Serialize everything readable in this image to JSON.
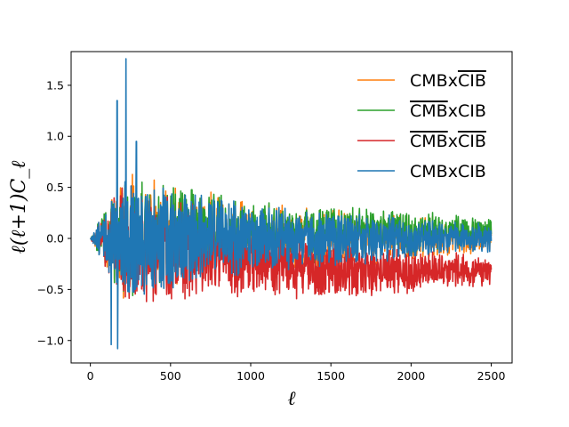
{
  "chart_data": {
    "type": "line",
    "xlabel": "ℓ",
    "ylabel": "ℓ(ℓ+1)C_ℓ",
    "xlim": [
      -120,
      2630
    ],
    "ylim": [
      -1.22,
      1.83
    ],
    "xticks": [
      0,
      500,
      1000,
      1500,
      2000,
      2500
    ],
    "yticks": [
      -1.0,
      -0.5,
      0.0,
      0.5,
      1.0,
      1.5
    ],
    "xtick_labels": [
      "0",
      "500",
      "1000",
      "1500",
      "2000",
      "2500"
    ],
    "ytick_labels": [
      "−1.0",
      "−0.5",
      "0.0",
      "0.5",
      "1.0",
      "1.5"
    ],
    "grid": false,
    "legend_position": "top-right",
    "n_points": 2500,
    "series": [
      {
        "name": "CMBxCIB_overline",
        "legend": [
          "CMBx",
          "CIB"
        ],
        "overline_part": [
          false,
          true
        ],
        "color": "#ff7f0e",
        "envelope": [
          {
            "x": 0,
            "amp": 0.0
          },
          {
            "x": 200,
            "amp": 0.6
          },
          {
            "x": 1000,
            "amp": 0.35
          },
          {
            "x": 2500,
            "amp": 0.15
          }
        ],
        "offset": 0.0
      },
      {
        "name": "overlineCMBxCIB",
        "legend": [
          "CMB",
          "xCIB"
        ],
        "overline_part": [
          true,
          false
        ],
        "color": "#2ca02c",
        "envelope": [
          {
            "x": 0,
            "amp": 0.0
          },
          {
            "x": 200,
            "amp": 0.6
          },
          {
            "x": 1000,
            "amp": 0.33
          },
          {
            "x": 2500,
            "amp": 0.14
          }
        ],
        "offset_start": 0.0,
        "offset_end": 0.06
      },
      {
        "name": "overlineCMBxoverlineCIB",
        "legend": [
          "CMB",
          "x",
          "CIB"
        ],
        "overline_part": [
          true,
          false,
          true
        ],
        "color": "#d62728",
        "envelope": [
          {
            "x": 0,
            "amp": 0.0
          },
          {
            "x": 200,
            "amp": 0.6
          },
          {
            "x": 1000,
            "amp": 0.33
          },
          {
            "x": 2500,
            "amp": 0.14
          }
        ],
        "offset_start": 0.0,
        "offset_end": -0.32
      },
      {
        "name": "CMBxCIB",
        "legend": [
          "CMBxCIB"
        ],
        "overline_part": [
          false
        ],
        "color": "#1f77b4",
        "envelope": [
          {
            "x": 0,
            "amp": 0.0
          },
          {
            "x": 200,
            "amp": 0.6
          },
          {
            "x": 1000,
            "amp": 0.33
          },
          {
            "x": 2500,
            "amp": 0.13
          }
        ],
        "offset": 0.0,
        "spikes": [
          {
            "x": 222,
            "y": 1.76
          },
          {
            "x": 170,
            "y": -1.08
          },
          {
            "x": 130,
            "y": -1.04
          },
          {
            "x": 167,
            "y": 1.35
          },
          {
            "x": 287,
            "y": 0.95
          }
        ]
      }
    ]
  }
}
